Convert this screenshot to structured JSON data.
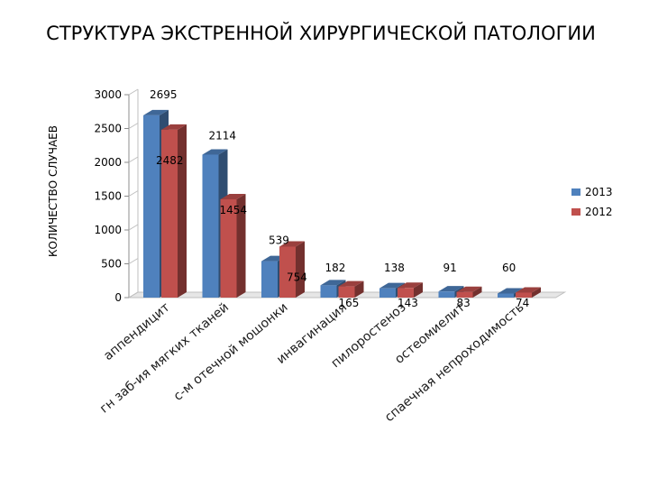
{
  "chart_data": {
    "type": "bar",
    "title": "СТРУКТУРА ЭКСТРЕННОЙ ХИРУРГИЧЕСКОЙ ПАТОЛОГИИ",
    "xlabel": "",
    "ylabel": "КОЛИЧЕСТВО СЛУЧАЕВ",
    "ylim": [
      0,
      3000
    ],
    "yticks": [
      "0",
      "500",
      "1000",
      "1500",
      "2000",
      "2500",
      "3000"
    ],
    "grid": false,
    "legend_position": "right",
    "categories": [
      "аппендицит",
      "гн заб-ия мягких тканей",
      "с-м отечной мошонки",
      "инвагинация",
      "пилоростеноз",
      "остеомиелит",
      "спаечная непроходимость"
    ],
    "series": [
      {
        "name": "2013",
        "color": "#4f81bd",
        "values": [
          2695,
          2114,
          539,
          182,
          138,
          91,
          60
        ],
        "labels": [
          "2695",
          "2114",
          "539",
          "182",
          "138",
          "91",
          "60"
        ]
      },
      {
        "name": "2012",
        "color": "#c0504d",
        "values": [
          2482,
          1454,
          754,
          165,
          143,
          83,
          74
        ],
        "labels": [
          "2482",
          "1454",
          "754",
          "165",
          "143",
          "83",
          "74"
        ]
      }
    ]
  }
}
